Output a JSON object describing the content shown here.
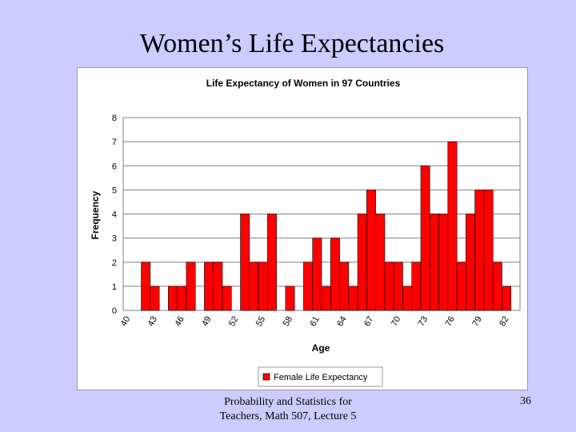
{
  "slide": {
    "title": "Women’s Life Expectancies",
    "footer_line1": "Probability and Statistics for",
    "footer_line2": "Teachers, Math 507, Lecture 5",
    "page_number": "36"
  },
  "chart_data": {
    "type": "bar",
    "title": "Life Expectancy of Women in 97 Countries",
    "xlabel": "Age",
    "ylabel": "Frequency",
    "ylim": [
      0,
      8
    ],
    "yticks": [
      0,
      1,
      2,
      3,
      4,
      5,
      6,
      7,
      8
    ],
    "grid": true,
    "legend_position": "bottom",
    "bar_color": "#ff0000",
    "categories": [
      40,
      41,
      42,
      43,
      44,
      45,
      46,
      47,
      48,
      49,
      50,
      51,
      52,
      53,
      54,
      55,
      56,
      57,
      58,
      59,
      60,
      61,
      62,
      63,
      64,
      65,
      66,
      67,
      68,
      69,
      70,
      71,
      72,
      73,
      74,
      75,
      76,
      77,
      78,
      79,
      80,
      81,
      82,
      83
    ],
    "tick_labels": [
      "40",
      "43",
      "46",
      "49",
      "52",
      "55",
      "58",
      "61",
      "64",
      "67",
      "70",
      "73",
      "76",
      "79",
      "82"
    ],
    "series": [
      {
        "name": "Female Life Expectancy",
        "values": [
          0,
          0,
          2,
          1,
          0,
          1,
          1,
          2,
          0,
          2,
          2,
          1,
          0,
          4,
          2,
          2,
          4,
          0,
          1,
          0,
          2,
          3,
          1,
          3,
          2,
          1,
          4,
          5,
          4,
          2,
          2,
          1,
          2,
          6,
          4,
          4,
          7,
          2,
          4,
          5,
          5,
          2,
          1,
          0
        ]
      }
    ]
  }
}
